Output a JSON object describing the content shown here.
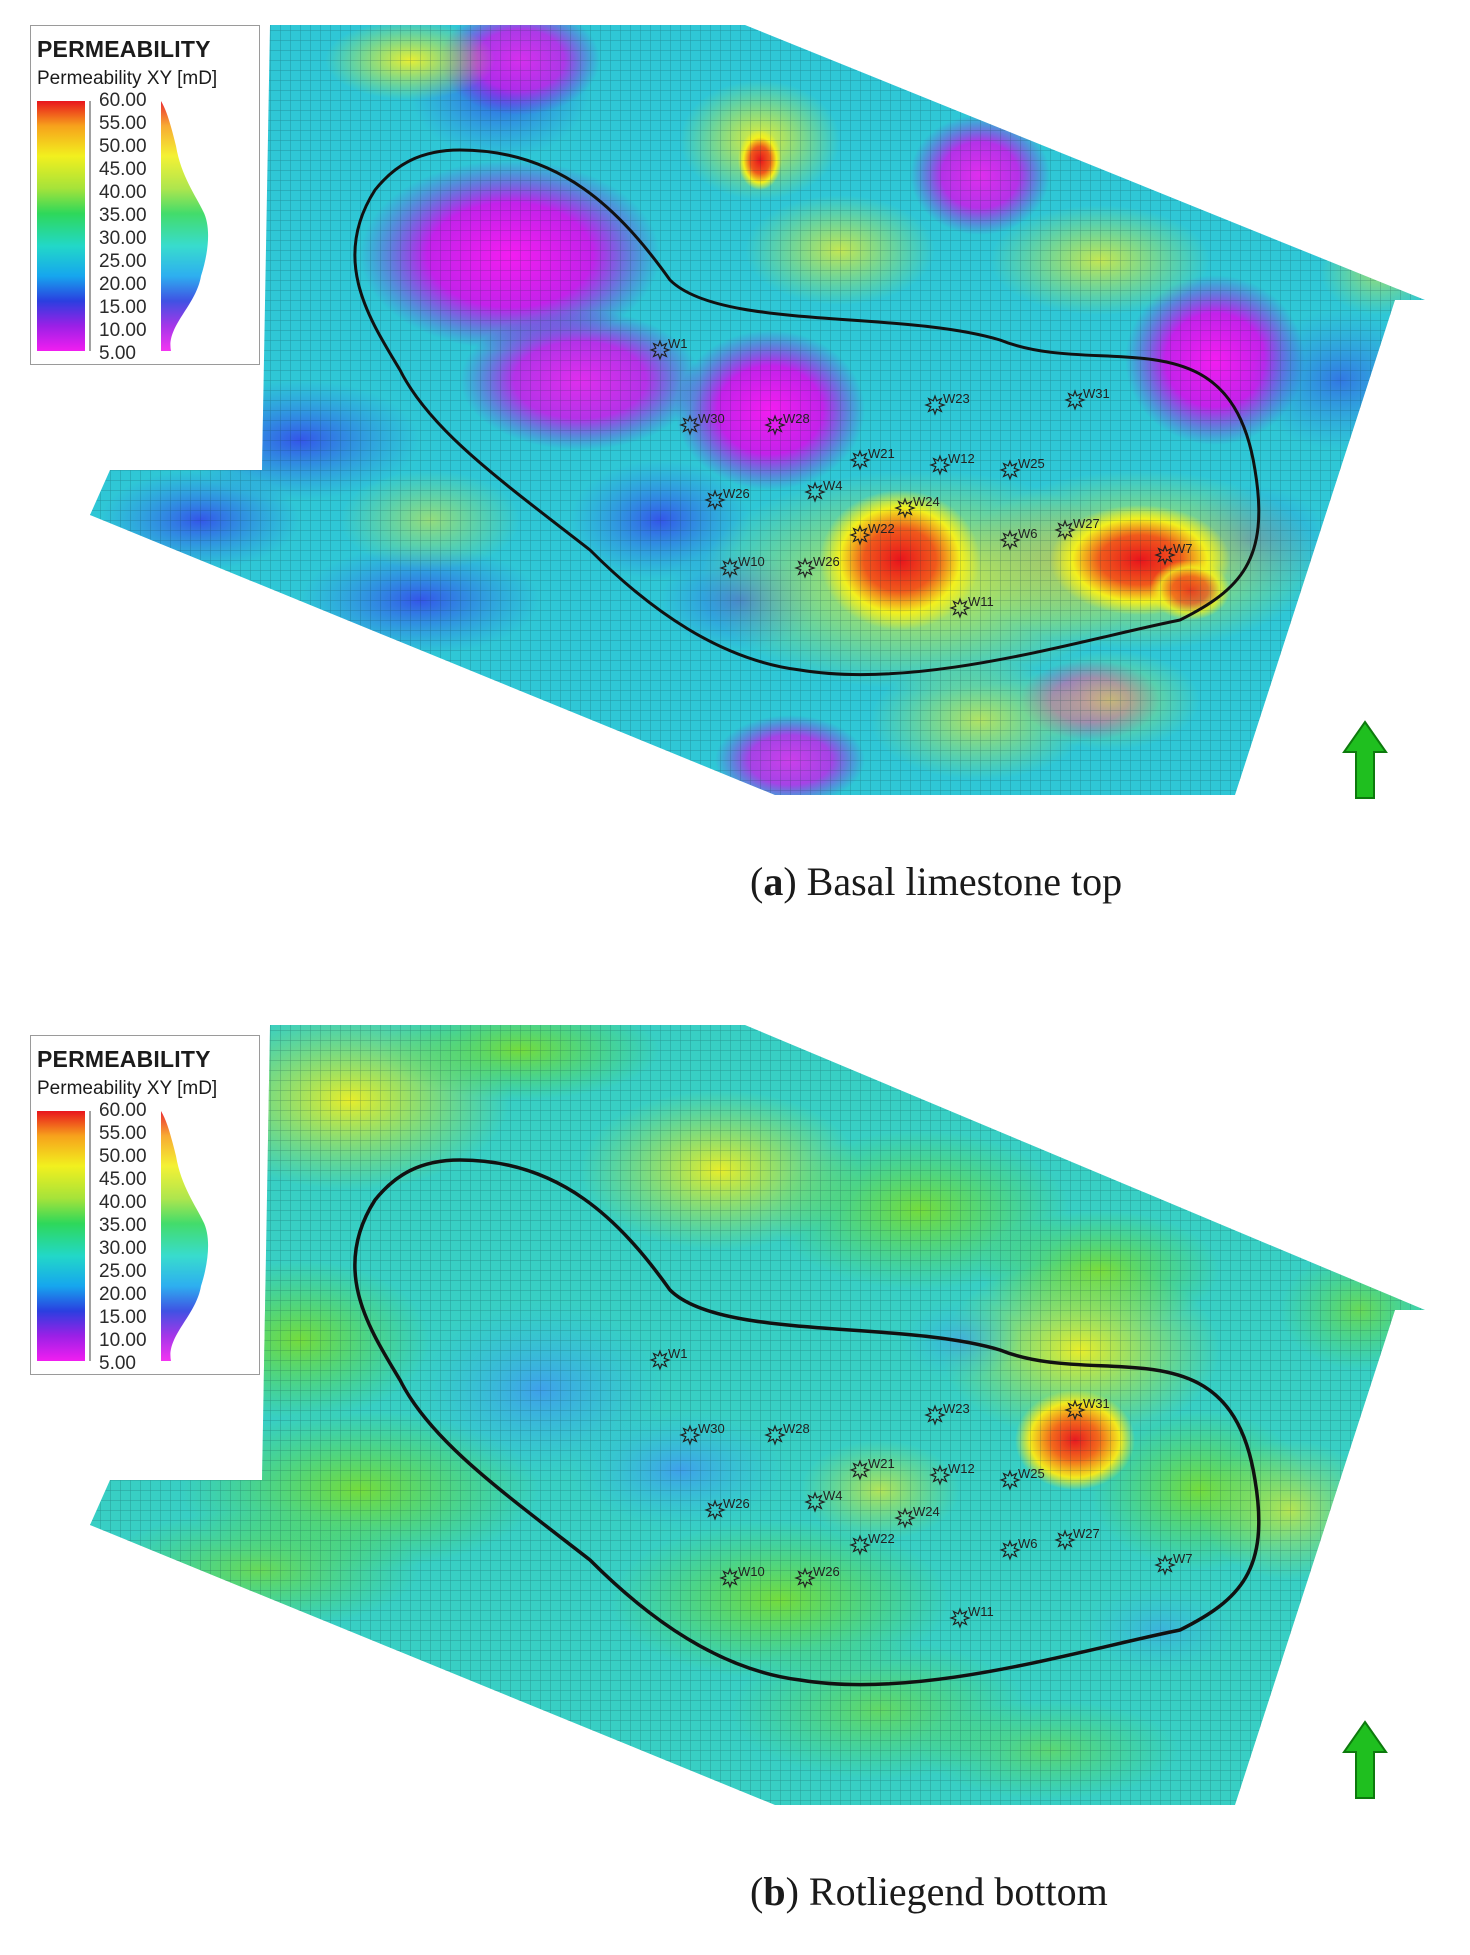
{
  "panels": [
    {
      "id": "a",
      "legend": {
        "title": "PERMEABILITY",
        "subtitle": "Permeability XY [mD]",
        "ticks": [
          "60.00",
          "55.00",
          "50.00",
          "45.00",
          "40.00",
          "35.00",
          "30.00",
          "25.00",
          "20.00",
          "15.00",
          "10.00",
          "5.00"
        ]
      },
      "caption_letter": "a",
      "caption_text": " Basal limestone top",
      "wells": [
        "W1",
        "W30",
        "W28",
        "W23",
        "W31",
        "W21",
        "W12",
        "W25",
        "W26",
        "W4",
        "W24",
        "W22",
        "W6",
        "W27",
        "W10",
        "W26",
        "W11",
        "W7"
      ]
    },
    {
      "id": "b",
      "legend": {
        "title": "PERMEABILITY",
        "subtitle": "Permeability XY [mD]",
        "ticks": [
          "60.00",
          "55.00",
          "50.00",
          "45.00",
          "40.00",
          "35.00",
          "30.00",
          "25.00",
          "20.00",
          "15.00",
          "10.00",
          "5.00"
        ]
      },
      "caption_letter": "b",
      "caption_text": " Rotliegend bottom",
      "wells": [
        "W1",
        "W30",
        "W28",
        "W23",
        "W31",
        "W21",
        "W12",
        "W25",
        "W26",
        "W4",
        "W24",
        "W22",
        "W6",
        "W27",
        "W10",
        "W26",
        "W11",
        "W7"
      ]
    }
  ],
  "colors": {
    "north_arrow": "#1fbf1f",
    "outline": "#111111",
    "colorscale": [
      "#e8141c",
      "#f7a21c",
      "#f2f01e",
      "#a5e33a",
      "#2ed85a",
      "#22d8c8",
      "#16a6ee",
      "#2a3fe0",
      "#9b20e6",
      "#f21ef0"
    ]
  }
}
